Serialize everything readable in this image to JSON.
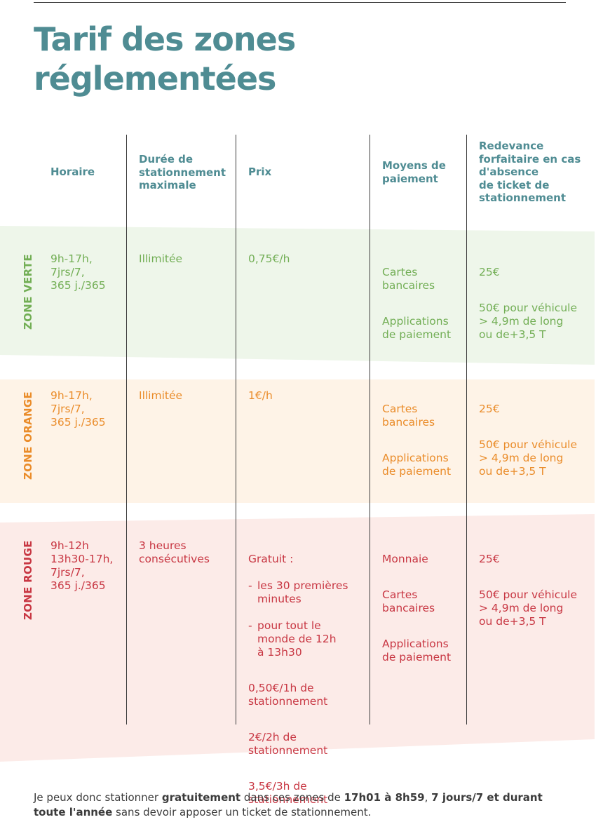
{
  "title": "Tarif des zones\nréglementées",
  "headers": {
    "horaire": "Horaire",
    "duree": "Durée de\nstationnement\nmaximale",
    "prix": "Prix",
    "moyens": "Moyens de\npaiement",
    "redevance": "Redevance\nforfaitaire en cas\nd'absence\nde ticket de\nstationnement"
  },
  "colors": {
    "title": "#4f8c93",
    "green": "#72ae55",
    "orange": "#ea8c2a",
    "red": "#c83743"
  },
  "zones": {
    "verte": {
      "label": "ZONE VERTE",
      "horaire": "9h-17h,\n7jrs/7,\n365 j./365",
      "duree": "Illimitée",
      "prix": "0,75€/h",
      "moyens": [
        "Cartes\nbancaires",
        "Applications\nde paiement"
      ],
      "redevance": [
        "25€",
        "50€ pour véhicule\n> 4,9m de long\nou de+3,5 T"
      ]
    },
    "orange": {
      "label": "ZONE ORANGE",
      "horaire": "9h-17h,\n7jrs/7,\n365 j./365",
      "duree": "Illimitée",
      "prix": "1€/h",
      "moyens": [
        "Cartes\nbancaires",
        "Applications\nde paiement"
      ],
      "redevance": [
        "25€",
        "50€ pour véhicule\n> 4,9m de long\nou de+3,5 T"
      ]
    },
    "rouge": {
      "label": "ZONE ROUGE",
      "horaire": "9h-12h\n13h30-17h,\n7jrs/7,\n365 j./365",
      "duree": "3 heures\nconsécutives",
      "prix": {
        "gratuit_label": "Gratuit :",
        "dash1": "les 30 premières\nminutes",
        "dash2": "pour tout le\nmonde de 12h\nà 13h30",
        "p1": "0,50€/1h de\nstationnement",
        "p2": "2€/2h de\nstationnement",
        "p3": "3,5€/3h de\nstationnement"
      },
      "moyens": [
        "Monnaie",
        "Cartes\nbancaires",
        "Applications\nde paiement"
      ],
      "redevance": [
        "25€",
        "50€ pour véhicule\n> 4,9m de long\nou de+3,5 T"
      ]
    }
  },
  "footer": {
    "t1": "Je peux donc stationner ",
    "b1": "gratuitement",
    "t2": " dans ces zones de ",
    "b2": "17h01 à 8h59",
    "t3": ", ",
    "b3": "7 jours/7 et durant toute l'année",
    "t4": " sans devoir apposer un ticket de stationnement."
  }
}
